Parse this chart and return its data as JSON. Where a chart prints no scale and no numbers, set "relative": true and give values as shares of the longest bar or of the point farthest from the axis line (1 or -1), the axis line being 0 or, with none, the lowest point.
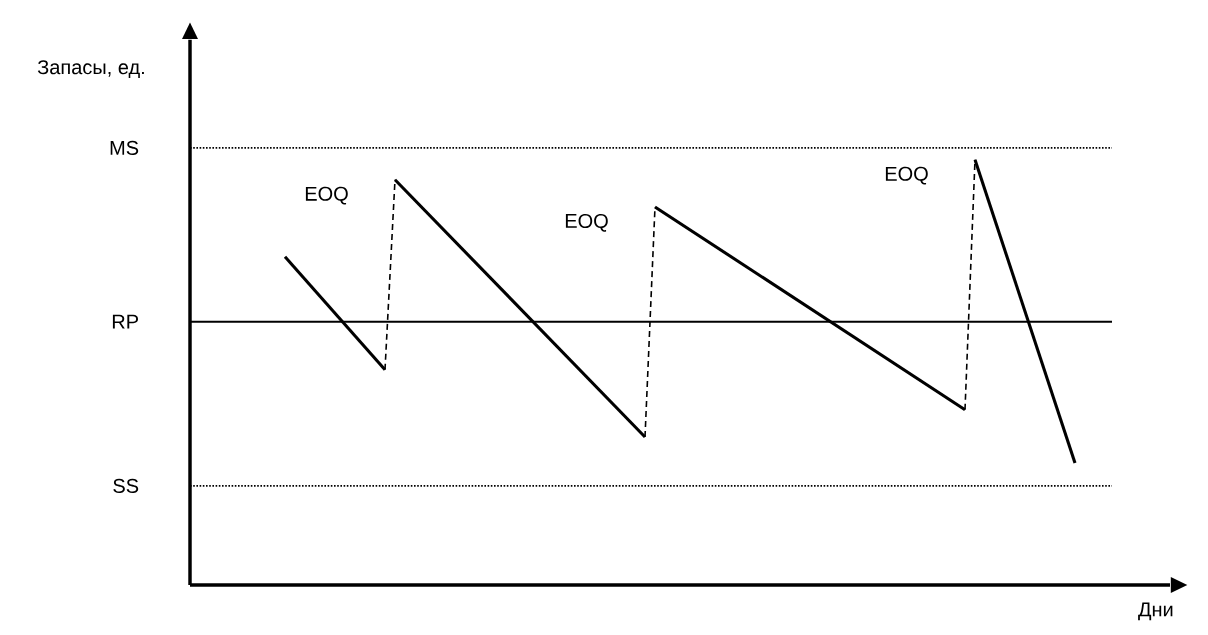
{
  "chart_data": {
    "type": "line",
    "relative": true,
    "xlabel": "Дни",
    "categories": [
      null,
      null,
      null,
      null,
      null,
      null,
      null,
      null,
      null,
      null,
      null,
      null,
      null,
      null,
      null,
      null,
      null,
      null,
      null,
      null,
      null,
      null,
      null,
      null,
      null,
      null,
      null,
      null,
      null,
      null,
      null,
      null,
      null,
      null,
      null,
      null,
      null,
      null,
      null,
      null,
      null,
      null,
      null,
      null,
      null,
      null,
      null,
      null,
      null,
      null,
      null,
      null,
      null,
      null,
      null,
      null,
      null,
      null,
      null,
      null,
      null,
      null,
      null,
      null,
      null,
      null,
      null,
      null,
      null,
      null,
      null,
      null,
      null,
      null,
      null,
      null,
      null,
      null,
      null,
      null
    ],
    "series": [
      {
        "color": "#000000",
        "line_style": "solid",
        "values": [
          0.772,
          null,
          null,
          null,
          null,
          null,
          null,
          null,
          null,
          null,
          0.506,
          null,
          null,
          null,
          null,
          null,
          null,
          null,
          null,
          null,
          null,
          null,
          null,
          null,
          null,
          null,
          null,
          null,
          null,
          null,
          null,
          null,
          null,
          null,
          null,
          null,
          null,
          null,
          null,
          null,
          null,
          null,
          null,
          null,
          null,
          null,
          null,
          null,
          null,
          null,
          null,
          null,
          null,
          null,
          null,
          null,
          null,
          null,
          null,
          null,
          null,
          null,
          null,
          null,
          null,
          null,
          null,
          null,
          null,
          null,
          null,
          null,
          null,
          null,
          null,
          null,
          null,
          null,
          null,
          null
        ]
      },
      {
        "color": "#000000",
        "line_style": "dashed",
        "values": [
          null,
          null,
          null,
          null,
          null,
          null,
          null,
          null,
          null,
          null,
          0.506,
          0.953,
          null,
          null,
          null,
          null,
          null,
          null,
          null,
          null,
          null,
          null,
          null,
          null,
          null,
          null,
          null,
          null,
          null,
          null,
          null,
          null,
          null,
          null,
          null,
          null,
          null,
          null,
          null,
          null,
          null,
          null,
          null,
          null,
          null,
          null,
          null,
          null,
          null,
          null,
          null,
          null,
          null,
          null,
          null,
          null,
          null,
          null,
          null,
          null,
          null,
          null,
          null,
          null,
          null,
          null,
          null,
          null,
          null,
          null,
          null,
          null,
          null,
          null,
          null,
          null,
          null,
          null,
          null,
          null
        ]
      },
      {
        "color": "#000000",
        "line_style": "solid",
        "values": [
          null,
          null,
          null,
          null,
          null,
          null,
          null,
          null,
          null,
          null,
          null,
          0.953,
          null,
          null,
          null,
          null,
          null,
          null,
          null,
          null,
          null,
          null,
          null,
          null,
          null,
          null,
          null,
          null,
          null,
          null,
          null,
          null,
          null,
          null,
          null,
          null,
          0.348,
          null,
          null,
          null,
          null,
          null,
          null,
          null,
          null,
          null,
          null,
          null,
          null,
          null,
          null,
          null,
          null,
          null,
          null,
          null,
          null,
          null,
          null,
          null,
          null,
          null,
          null,
          null,
          null,
          null,
          null,
          null,
          null,
          null,
          null,
          null,
          null,
          null,
          null,
          null,
          null,
          null,
          null,
          null
        ]
      },
      {
        "color": "#000000",
        "line_style": "dashed",
        "values": [
          null,
          null,
          null,
          null,
          null,
          null,
          null,
          null,
          null,
          null,
          null,
          null,
          null,
          null,
          null,
          null,
          null,
          null,
          null,
          null,
          null,
          null,
          null,
          null,
          null,
          null,
          null,
          null,
          null,
          null,
          null,
          null,
          null,
          null,
          null,
          null,
          0.348,
          0.889,
          null,
          null,
          null,
          null,
          null,
          null,
          null,
          null,
          null,
          null,
          null,
          null,
          null,
          null,
          null,
          null,
          null,
          null,
          null,
          null,
          null,
          null,
          null,
          null,
          null,
          null,
          null,
          null,
          null,
          null,
          null,
          null,
          null,
          null,
          null,
          null,
          null,
          null,
          null,
          null,
          null,
          null
        ]
      },
      {
        "color": "#000000",
        "line_style": "solid",
        "values": [
          null,
          null,
          null,
          null,
          null,
          null,
          null,
          null,
          null,
          null,
          null,
          null,
          null,
          null,
          null,
          null,
          null,
          null,
          null,
          null,
          null,
          null,
          null,
          null,
          null,
          null,
          null,
          null,
          null,
          null,
          null,
          null,
          null,
          null,
          null,
          null,
          null,
          0.889,
          null,
          null,
          null,
          null,
          null,
          null,
          null,
          null,
          null,
          null,
          null,
          null,
          null,
          null,
          null,
          null,
          null,
          null,
          null,
          null,
          null,
          null,
          null,
          null,
          null,
          null,
          null,
          null,
          null,
          null,
          0.412,
          null,
          null,
          null,
          null,
          null,
          null,
          null,
          null,
          null,
          null,
          null
        ]
      },
      {
        "color": "#000000",
        "line_style": "dashed",
        "values": [
          null,
          null,
          null,
          null,
          null,
          null,
          null,
          null,
          null,
          null,
          null,
          null,
          null,
          null,
          null,
          null,
          null,
          null,
          null,
          null,
          null,
          null,
          null,
          null,
          null,
          null,
          null,
          null,
          null,
          null,
          null,
          null,
          null,
          null,
          null,
          null,
          null,
          null,
          null,
          null,
          null,
          null,
          null,
          null,
          null,
          null,
          null,
          null,
          null,
          null,
          null,
          null,
          null,
          null,
          null,
          null,
          null,
          null,
          null,
          null,
          null,
          null,
          null,
          null,
          null,
          null,
          null,
          null,
          0.412,
          1.0,
          null,
          null,
          null,
          null,
          null,
          null,
          null,
          null,
          null,
          null
        ]
      },
      {
        "color": "#000000",
        "line_style": "solid",
        "values": [
          null,
          null,
          null,
          null,
          null,
          null,
          null,
          null,
          null,
          null,
          null,
          null,
          null,
          null,
          null,
          null,
          null,
          null,
          null,
          null,
          null,
          null,
          null,
          null,
          null,
          null,
          null,
          null,
          null,
          null,
          null,
          null,
          null,
          null,
          null,
          null,
          null,
          null,
          null,
          null,
          null,
          null,
          null,
          null,
          null,
          null,
          null,
          null,
          null,
          null,
          null,
          null,
          null,
          null,
          null,
          null,
          null,
          null,
          null,
          null,
          null,
          null,
          null,
          null,
          null,
          null,
          null,
          null,
          null,
          1.0,
          null,
          null,
          null,
          null,
          null,
          null,
          null,
          null,
          null,
          0.287
        ]
      }
    ],
    "ref_lines": [
      {
        "axis": "y",
        "value": 1.028,
        "label": "MS",
        "color": "#000000",
        "line_style": "dotted"
      },
      {
        "axis": "y",
        "value": 0.619,
        "label": "RP",
        "color": "#000000",
        "line_style": "solid"
      },
      {
        "axis": "y",
        "value": 0.233,
        "label": "SS",
        "color": "#000000",
        "line_style": "dotted"
      }
    ],
    "annotations": [
      "EOQ",
      "EOQ",
      "EOQ",
      "Запасы, ед."
    ]
  }
}
